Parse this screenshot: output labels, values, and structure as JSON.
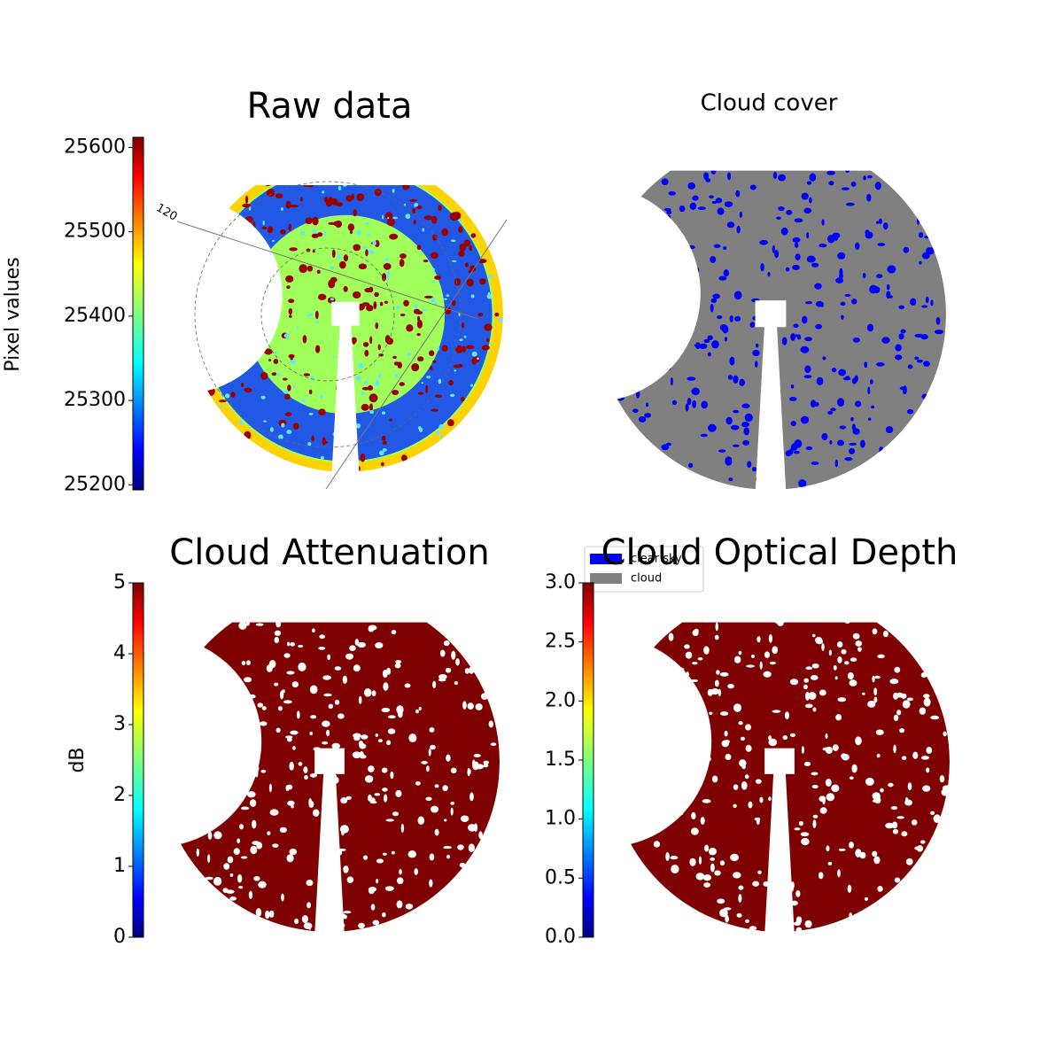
{
  "chart_data": [
    {
      "type": "image",
      "title": "Raw data",
      "colormap": "jet",
      "colorbar_label": "Pixel values",
      "clim": [
        25194,
        25612
      ],
      "cticks": [
        25200,
        25300,
        25400,
        25500,
        25600
      ],
      "annotations": [
        "120"
      ]
    },
    {
      "type": "image",
      "title": "Cloud cover",
      "series": [
        {
          "name": "clear sky",
          "color": "#0000ff"
        },
        {
          "name": "cloud",
          "color": "#808080"
        }
      ]
    },
    {
      "type": "image",
      "title": "Cloud Attenuation",
      "colormap": "jet",
      "colorbar_label": "dB",
      "color": "#7f0000",
      "clim": [
        0,
        5
      ],
      "cticks": [
        0,
        1,
        2,
        3,
        4,
        5
      ]
    },
    {
      "type": "image",
      "title": "Cloud Optical Depth",
      "colormap": "jet",
      "color": "#7f0000",
      "clim": [
        0,
        3
      ],
      "cticks": [
        {
          "value": 0,
          "label": "0.0"
        },
        0.5,
        {
          "value": 1,
          "label": "1.0"
        },
        1.5,
        {
          "value": 2,
          "label": "2.0"
        },
        2.5,
        {
          "value": 3,
          "label": "3.0"
        }
      ]
    }
  ]
}
